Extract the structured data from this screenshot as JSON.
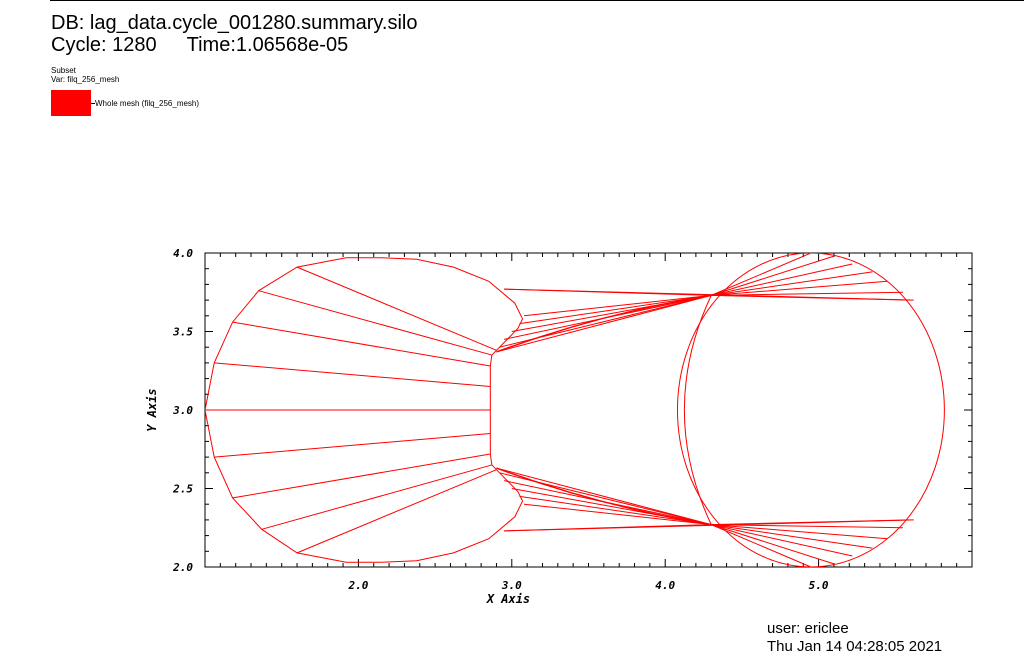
{
  "header": {
    "db_label": "DB: lag_data.cycle_001280.summary.silo",
    "cycle_label": "Cycle: 1280",
    "time_label": "Time:1.06568e-05"
  },
  "legend": {
    "title": "Subset",
    "var_label": "Var: filq_256_mesh",
    "entry_label": "Whole mesh (filq_256_mesh)",
    "swatch_color": "#ff0000"
  },
  "footer": {
    "user": "user: ericlee",
    "date": "Thu Jan 14 04:28:05 2021"
  },
  "chart_data": {
    "type": "mesh",
    "title": "",
    "xlabel": "X Axis",
    "ylabel": "Y Axis",
    "xlim": [
      1.0,
      6.0
    ],
    "ylim": [
      2.0,
      4.0
    ],
    "x_ticks": [
      "2.0",
      "3.0",
      "4.0",
      "5.0"
    ],
    "x_tick_values": [
      2.0,
      3.0,
      4.0,
      5.0
    ],
    "y_ticks": [
      "4.0",
      "3.5",
      "3.0",
      "2.5",
      "2.0"
    ],
    "y_tick_values": [
      4.0,
      3.5,
      3.0,
      2.5,
      2.0
    ],
    "line_color": "#ff0000",
    "left_blob_boundary": [
      [
        2.87,
        3.35
      ],
      [
        2.92,
        3.4
      ],
      [
        3.04,
        3.52
      ],
      [
        3.07,
        3.58
      ],
      [
        3.02,
        3.68
      ],
      [
        2.85,
        3.82
      ],
      [
        2.62,
        3.91
      ],
      [
        2.38,
        3.96
      ],
      [
        2.15,
        3.97
      ],
      [
        1.92,
        3.97
      ],
      [
        1.6,
        3.91
      ],
      [
        1.35,
        3.76
      ],
      [
        1.18,
        3.56
      ],
      [
        1.06,
        3.3
      ],
      [
        1.0,
        3.0
      ],
      [
        1.06,
        2.7
      ],
      [
        1.18,
        2.44
      ],
      [
        1.37,
        2.24
      ],
      [
        1.6,
        2.09
      ],
      [
        1.92,
        2.03
      ],
      [
        2.15,
        2.03
      ],
      [
        2.38,
        2.04
      ],
      [
        2.62,
        2.09
      ],
      [
        2.85,
        2.18
      ],
      [
        3.02,
        2.32
      ],
      [
        3.07,
        2.42
      ],
      [
        3.04,
        2.48
      ],
      [
        2.92,
        2.6
      ],
      [
        2.87,
        2.65
      ],
      [
        2.86,
        2.72
      ],
      [
        2.86,
        2.85
      ],
      [
        2.86,
        3.0
      ],
      [
        2.86,
        3.15
      ],
      [
        2.86,
        3.28
      ],
      [
        2.87,
        3.35
      ]
    ],
    "left_fan_lines": [
      [
        [
          1.0,
          3.0
        ],
        [
          2.86,
          3.0
        ]
      ],
      [
        [
          1.06,
          3.3
        ],
        [
          2.86,
          3.15
        ]
      ],
      [
        [
          1.18,
          3.56
        ],
        [
          2.86,
          3.28
        ]
      ],
      [
        [
          1.35,
          3.76
        ],
        [
          2.87,
          3.35
        ]
      ],
      [
        [
          1.6,
          3.91
        ],
        [
          2.9,
          3.38
        ]
      ],
      [
        [
          1.06,
          2.7
        ],
        [
          2.86,
          2.85
        ]
      ],
      [
        [
          1.18,
          2.44
        ],
        [
          2.86,
          2.72
        ]
      ],
      [
        [
          1.37,
          2.24
        ],
        [
          2.87,
          2.65
        ]
      ],
      [
        [
          1.6,
          2.09
        ],
        [
          2.9,
          2.62
        ]
      ]
    ],
    "right_circle": {
      "cx": 4.95,
      "cy": 3.0,
      "rx": 0.87,
      "ry": 1.0
    },
    "upper_bundle": {
      "left": [
        [
          2.95,
          3.77
        ],
        [
          3.08,
          3.6
        ],
        [
          3.05,
          3.55
        ],
        [
          3.0,
          3.5
        ],
        [
          2.95,
          3.45
        ],
        [
          2.92,
          3.4
        ],
        [
          2.9,
          3.37
        ]
      ],
      "right": [
        [
          5.6,
          3.7
        ],
        [
          5.55,
          3.75
        ],
        [
          5.45,
          3.82
        ],
        [
          5.35,
          3.88
        ],
        [
          5.22,
          3.93
        ],
        [
          5.1,
          3.98
        ],
        [
          4.95,
          4.0
        ]
      ],
      "top_start": [
        2.95,
        3.77
      ],
      "top_end": [
        5.62,
        3.7
      ]
    },
    "lower_bundle": {
      "left": [
        [
          2.95,
          2.23
        ],
        [
          3.08,
          2.4
        ],
        [
          3.05,
          2.45
        ],
        [
          3.0,
          2.5
        ],
        [
          2.95,
          2.55
        ],
        [
          2.92,
          2.6
        ],
        [
          2.9,
          2.63
        ]
      ],
      "right": [
        [
          5.6,
          2.3
        ],
        [
          5.55,
          2.25
        ],
        [
          5.45,
          2.18
        ],
        [
          5.35,
          2.12
        ],
        [
          5.22,
          2.07
        ],
        [
          5.1,
          2.02
        ],
        [
          4.95,
          2.0
        ]
      ],
      "bottom_start": [
        2.95,
        2.23
      ],
      "bottom_end": [
        5.62,
        2.3
      ]
    }
  }
}
